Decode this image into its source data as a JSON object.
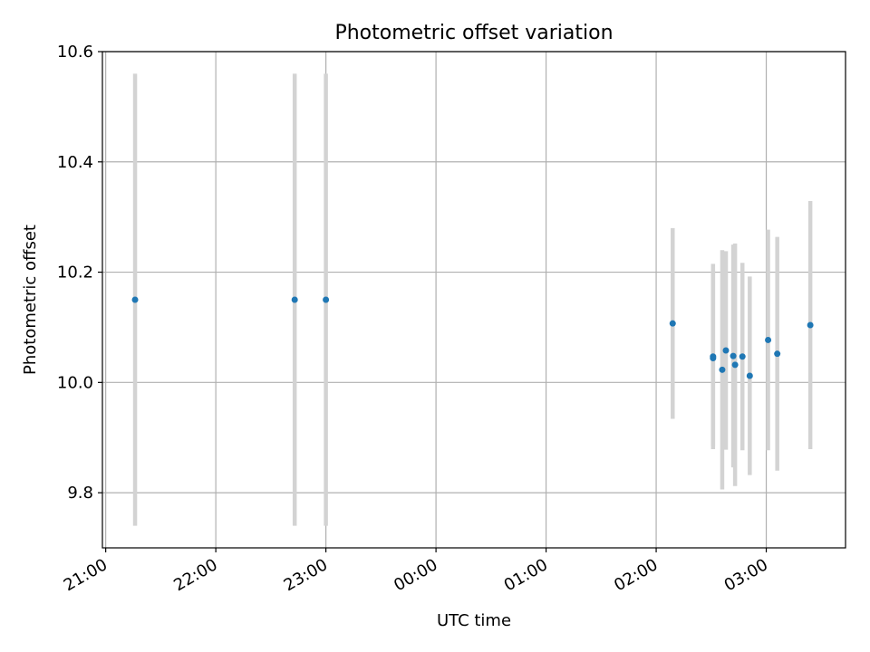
{
  "chart_data": {
    "type": "scatter",
    "title": "Photometric offset variation",
    "xlabel": "UTC time",
    "ylabel": "Photometric offset",
    "x_tick_labels": [
      "21:00",
      "22:00",
      "23:00",
      "00:00",
      "01:00",
      "02:00",
      "03:00"
    ],
    "y_tick_labels": [
      "9.8",
      "10.0",
      "10.2",
      "10.4",
      "10.6"
    ],
    "y_ticks": [
      9.8,
      10.0,
      10.2,
      10.4,
      10.6
    ],
    "ylim": [
      9.7,
      10.6
    ],
    "xlim_hours": [
      20.97,
      27.72
    ],
    "grid": true,
    "colors": {
      "point": "#1f77b4",
      "errorbar": "#d3d3d3",
      "grid": "#b0b0b0"
    },
    "points": [
      {
        "t": "21:16",
        "y": 10.15,
        "yerr": 0.41
      },
      {
        "t": "22:43",
        "y": 10.15,
        "yerr": 0.41
      },
      {
        "t": "23:00",
        "y": 10.15,
        "yerr": 0.41
      },
      {
        "t": "02:09",
        "y": 10.107,
        "yerr": 0.173
      },
      {
        "t": "02:31",
        "y": 10.047,
        "yerr": 0.168
      },
      {
        "t": "02:31",
        "y": 10.044,
        "yerr": 0.16
      },
      {
        "t": "02:36",
        "y": 10.023,
        "yerr": 0.217
      },
      {
        "t": "02:38",
        "y": 10.058,
        "yerr": 0.18
      },
      {
        "t": "02:42",
        "y": 10.048,
        "yerr": 0.202
      },
      {
        "t": "02:43",
        "y": 10.032,
        "yerr": 0.22
      },
      {
        "t": "02:47",
        "y": 10.047,
        "yerr": 0.17
      },
      {
        "t": "02:51",
        "y": 10.012,
        "yerr": 0.18
      },
      {
        "t": "03:01",
        "y": 10.077,
        "yerr": 0.2
      },
      {
        "t": "03:06",
        "y": 10.052,
        "yerr": 0.212
      },
      {
        "t": "03:24",
        "y": 10.104,
        "yerr": 0.225
      }
    ]
  }
}
